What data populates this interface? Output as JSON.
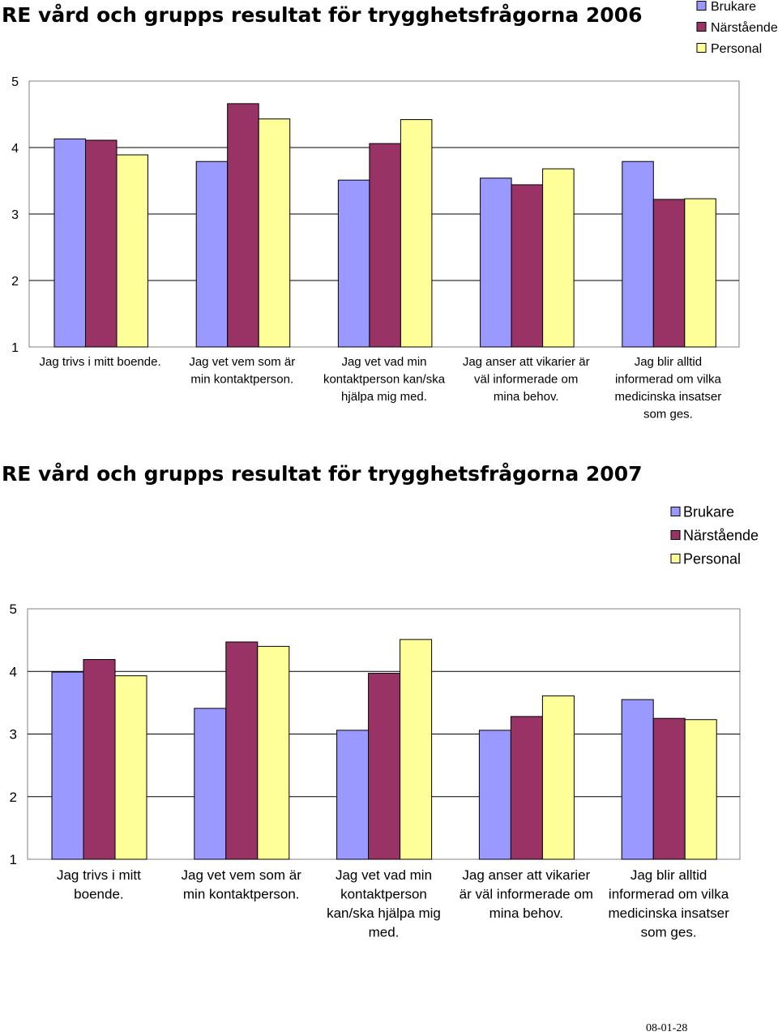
{
  "colors": {
    "brukare": "#9999ff",
    "narstaende": "#993366",
    "personal": "#ffff99"
  },
  "chart_data": [
    {
      "type": "bar",
      "title": "RE vård och grupps resultat för trygghetsfrågorna 2006",
      "xlabel": "",
      "ylabel": "",
      "ylim": [
        1,
        5
      ],
      "yticks": [
        "1",
        "2",
        "3",
        "4",
        "5"
      ],
      "legend_position": "top-right",
      "categories": [
        [
          "Jag trivs i mitt boende."
        ],
        [
          "Jag vet vem som är",
          "min kontaktperson."
        ],
        [
          "Jag vet vad min",
          "kontaktperson kan/ska",
          "hjälpa mig med."
        ],
        [
          "Jag anser att vikarier är",
          "väl informerade om",
          "mina behov."
        ],
        [
          "Jag blir alltid",
          "informerad om vilka",
          "medicinska insatser",
          "som ges."
        ]
      ],
      "series": [
        {
          "name": "Brukare",
          "values": [
            4.13,
            3.79,
            3.51,
            3.54,
            3.79
          ]
        },
        {
          "name": "Närstående",
          "values": [
            4.11,
            4.66,
            4.06,
            3.44,
            3.22
          ]
        },
        {
          "name": "Personal",
          "values": [
            3.89,
            4.43,
            4.42,
            3.68,
            3.23
          ]
        }
      ]
    },
    {
      "type": "bar",
      "title": "RE vård och grupps resultat för trygghetsfrågorna 2007",
      "xlabel": "",
      "ylabel": "",
      "ylim": [
        1,
        5
      ],
      "yticks": [
        "1",
        "2",
        "3",
        "4",
        "5"
      ],
      "legend_position": "top-right",
      "categories": [
        [
          "Jag trivs i mitt",
          "boende."
        ],
        [
          "Jag vet vem som är",
          "min kontaktperson."
        ],
        [
          "Jag vet vad min",
          "kontaktperson",
          "kan/ska hjälpa mig",
          "med."
        ],
        [
          "Jag anser att vikarier",
          "är väl informerade om",
          "mina behov."
        ],
        [
          "Jag blir alltid",
          "informerad om vilka",
          "medicinska insatser",
          "som ges."
        ]
      ],
      "series": [
        {
          "name": "Brukare",
          "values": [
            3.99,
            3.41,
            3.06,
            3.06,
            3.55
          ]
        },
        {
          "name": "Närstående",
          "values": [
            4.19,
            4.47,
            3.97,
            3.28,
            3.25
          ]
        },
        {
          "name": "Personal",
          "values": [
            3.93,
            4.4,
            4.51,
            3.61,
            3.23
          ]
        }
      ]
    }
  ],
  "footer": {
    "date": "08-01-28"
  }
}
